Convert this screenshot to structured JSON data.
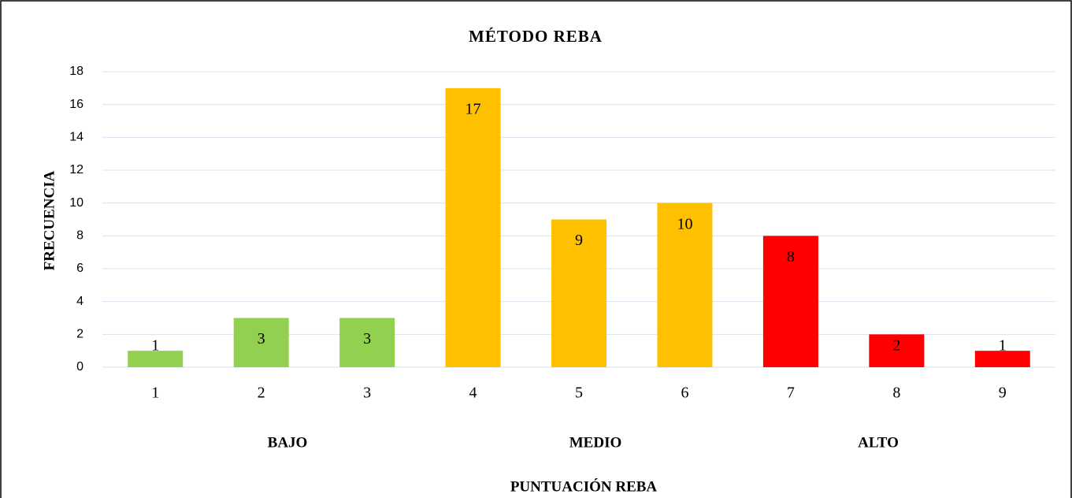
{
  "chart_data": {
    "type": "bar",
    "title": "MÉTODO REBA",
    "categories": [
      "1",
      "2",
      "3",
      "4",
      "5",
      "6",
      "7",
      "8",
      "9"
    ],
    "values": [
      1,
      3,
      3,
      17,
      9,
      10,
      8,
      2,
      1
    ],
    "colors": [
      "#92d050",
      "#92d050",
      "#92d050",
      "#ffc000",
      "#ffc000",
      "#ffc000",
      "#ff0000",
      "#ff0000",
      "#ff0000"
    ],
    "group_labels": [
      "BAJO",
      "MEDIO",
      "ALTO"
    ],
    "x_label": "PUNTUACIÓN REBA",
    "y_label": "FRECUENCIA",
    "ylim": [
      0,
      18
    ],
    "yticks": [
      0,
      2,
      4,
      6,
      8,
      10,
      12,
      14,
      16,
      18
    ],
    "grid": true
  }
}
